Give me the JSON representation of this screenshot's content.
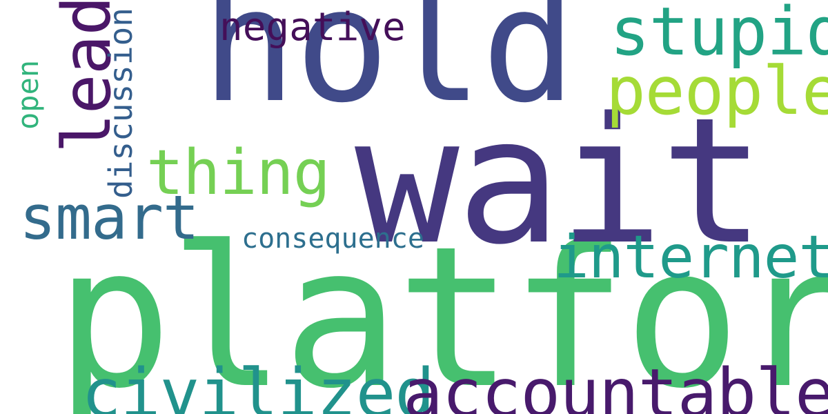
{
  "cloud": {
    "words": {
      "hold": {
        "text": "hold",
        "color": "#404a89"
      },
      "wait": {
        "text": "wait",
        "color": "#453880"
      },
      "platform": {
        "text": "platform",
        "color": "#46c06f"
      },
      "stupid": {
        "text": "stupid",
        "color": "#22a384"
      },
      "people": {
        "text": "people",
        "color": "#a5db36"
      },
      "negative": {
        "text": "negative",
        "color": "#440f59"
      },
      "lead": {
        "text": "lead",
        "color": "#4a1768"
      },
      "thing": {
        "text": "thing",
        "color": "#75d054"
      },
      "smart": {
        "text": "smart",
        "color": "#336b8c"
      },
      "discussion": {
        "text": "discussion",
        "color": "#345e8d"
      },
      "open": {
        "text": "open",
        "color": "#31b47c"
      },
      "consequence": {
        "text": "consequence",
        "color": "#2d6f8e"
      },
      "internet": {
        "text": "internet",
        "color": "#1f9a8a"
      },
      "civilized": {
        "text": "civilized",
        "color": "#21928c"
      },
      "accountable": {
        "text": "accountable",
        "color": "#481a6c"
      }
    }
  }
}
